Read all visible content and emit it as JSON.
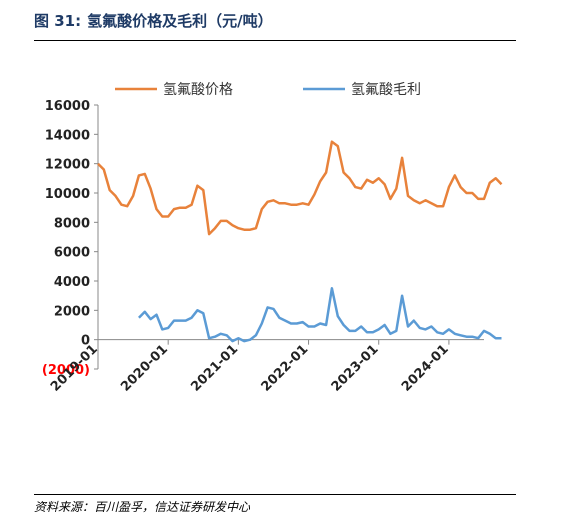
{
  "figure": {
    "label": "图 31:",
    "title": "氢氟酸价格及毛利（元/吨）",
    "source": "资料来源：百川盈孚，信达证券研发中心"
  },
  "colors": {
    "price": "#E8823B",
    "margin": "#5B9BD5",
    "title": "#1F3B66",
    "negative_tick": "#FF0000"
  },
  "chart_data": {
    "type": "line",
    "title": "",
    "xlabel": "",
    "ylabel": "",
    "ylim": [
      -2000,
      16000
    ],
    "yticks": [
      {
        "value": 16000,
        "label": "16000"
      },
      {
        "value": 14000,
        "label": "14000"
      },
      {
        "value": 12000,
        "label": "12000"
      },
      {
        "value": 10000,
        "label": "10000"
      },
      {
        "value": 8000,
        "label": "8000"
      },
      {
        "value": 6000,
        "label": "6000"
      },
      {
        "value": 4000,
        "label": "4000"
      },
      {
        "value": 2000,
        "label": "2000"
      },
      {
        "value": 0,
        "label": "0"
      },
      {
        "value": -2000,
        "label": "(2000)"
      }
    ],
    "xrange": [
      "2019-01",
      "2024-07"
    ],
    "xticks": [
      "2019-01",
      "2020-01",
      "2021-01",
      "2022-01",
      "2023-01",
      "2024-01"
    ],
    "grid": false,
    "legend_position": "top",
    "series": [
      {
        "name": "氢氟酸价格",
        "color": "#E8823B",
        "points": [
          [
            "2019-01",
            12000
          ],
          [
            "2019-02",
            11600
          ],
          [
            "2019-03",
            10200
          ],
          [
            "2019-04",
            9800
          ],
          [
            "2019-05",
            9200
          ],
          [
            "2019-06",
            9100
          ],
          [
            "2019-07",
            9800
          ],
          [
            "2019-08",
            11200
          ],
          [
            "2019-09",
            11300
          ],
          [
            "2019-10",
            10300
          ],
          [
            "2019-11",
            8900
          ],
          [
            "2019-12",
            8400
          ],
          [
            "2020-01",
            8400
          ],
          [
            "2020-02",
            8900
          ],
          [
            "2020-03",
            9000
          ],
          [
            "2020-04",
            9000
          ],
          [
            "2020-05",
            9200
          ],
          [
            "2020-06",
            10500
          ],
          [
            "2020-07",
            10200
          ],
          [
            "2020-08",
            7200
          ],
          [
            "2020-09",
            7600
          ],
          [
            "2020-10",
            8100
          ],
          [
            "2020-11",
            8100
          ],
          [
            "2020-12",
            7800
          ],
          [
            "2021-01",
            7600
          ],
          [
            "2021-02",
            7500
          ],
          [
            "2021-03",
            7500
          ],
          [
            "2021-04",
            7600
          ],
          [
            "2021-05",
            8900
          ],
          [
            "2021-06",
            9400
          ],
          [
            "2021-07",
            9500
          ],
          [
            "2021-08",
            9300
          ],
          [
            "2021-09",
            9300
          ],
          [
            "2021-10",
            9200
          ],
          [
            "2021-11",
            9200
          ],
          [
            "2021-12",
            9300
          ],
          [
            "2022-01",
            9200
          ],
          [
            "2022-02",
            9900
          ],
          [
            "2022-03",
            10800
          ],
          [
            "2022-04",
            11400
          ],
          [
            "2022-05",
            13500
          ],
          [
            "2022-06",
            13200
          ],
          [
            "2022-07",
            11400
          ],
          [
            "2022-08",
            11000
          ],
          [
            "2022-09",
            10400
          ],
          [
            "2022-10",
            10300
          ],
          [
            "2022-11",
            10900
          ],
          [
            "2022-12",
            10700
          ],
          [
            "2023-01",
            11000
          ],
          [
            "2023-02",
            10600
          ],
          [
            "2023-03",
            9600
          ],
          [
            "2023-04",
            10300
          ],
          [
            "2023-05",
            12400
          ],
          [
            "2023-06",
            9800
          ],
          [
            "2023-07",
            9500
          ],
          [
            "2023-08",
            9300
          ],
          [
            "2023-09",
            9500
          ],
          [
            "2023-10",
            9300
          ],
          [
            "2023-11",
            9100
          ],
          [
            "2023-12",
            9100
          ],
          [
            "2024-01",
            10400
          ],
          [
            "2024-02",
            11200
          ],
          [
            "2024-03",
            10400
          ],
          [
            "2024-04",
            10000
          ],
          [
            "2024-05",
            10000
          ],
          [
            "2024-06",
            9600
          ],
          [
            "2024-07",
            9600
          ],
          [
            "2024-08",
            10700
          ],
          [
            "2024-09",
            11000
          ],
          [
            "2024-10",
            10600
          ]
        ]
      },
      {
        "name": "氢氟酸毛利",
        "color": "#5B9BD5",
        "points": [
          [
            "2019-08",
            1500
          ],
          [
            "2019-09",
            1900
          ],
          [
            "2019-10",
            1400
          ],
          [
            "2019-11",
            1700
          ],
          [
            "2019-12",
            700
          ],
          [
            "2020-01",
            800
          ],
          [
            "2020-02",
            1300
          ],
          [
            "2020-03",
            1300
          ],
          [
            "2020-04",
            1300
          ],
          [
            "2020-05",
            1500
          ],
          [
            "2020-06",
            2000
          ],
          [
            "2020-07",
            1800
          ],
          [
            "2020-08",
            100
          ],
          [
            "2020-09",
            200
          ],
          [
            "2020-10",
            400
          ],
          [
            "2020-11",
            300
          ],
          [
            "2020-12",
            -100
          ],
          [
            "2021-01",
            100
          ],
          [
            "2021-02",
            -100
          ],
          [
            "2021-03",
            0
          ],
          [
            "2021-04",
            300
          ],
          [
            "2021-05",
            1100
          ],
          [
            "2021-06",
            2200
          ],
          [
            "2021-07",
            2100
          ],
          [
            "2021-08",
            1500
          ],
          [
            "2021-09",
            1300
          ],
          [
            "2021-10",
            1100
          ],
          [
            "2021-11",
            1100
          ],
          [
            "2021-12",
            1200
          ],
          [
            "2022-01",
            900
          ],
          [
            "2022-02",
            900
          ],
          [
            "2022-03",
            1100
          ],
          [
            "2022-04",
            1000
          ],
          [
            "2022-05",
            3500
          ],
          [
            "2022-06",
            1600
          ],
          [
            "2022-07",
            1000
          ],
          [
            "2022-08",
            600
          ],
          [
            "2022-09",
            600
          ],
          [
            "2022-10",
            900
          ],
          [
            "2022-11",
            500
          ],
          [
            "2022-12",
            500
          ],
          [
            "2023-01",
            700
          ],
          [
            "2023-02",
            1000
          ],
          [
            "2023-03",
            400
          ],
          [
            "2023-04",
            600
          ],
          [
            "2023-05",
            3000
          ],
          [
            "2023-06",
            900
          ],
          [
            "2023-07",
            1300
          ],
          [
            "2023-08",
            800
          ],
          [
            "2023-09",
            700
          ],
          [
            "2023-10",
            900
          ],
          [
            "2023-11",
            500
          ],
          [
            "2023-12",
            400
          ],
          [
            "2024-01",
            700
          ],
          [
            "2024-02",
            400
          ],
          [
            "2024-03",
            300
          ],
          [
            "2024-04",
            200
          ],
          [
            "2024-05",
            200
          ],
          [
            "2024-06",
            100
          ],
          [
            "2024-07",
            600
          ],
          [
            "2024-08",
            400
          ],
          [
            "2024-09",
            100
          ],
          [
            "2024-10",
            100
          ]
        ]
      }
    ]
  }
}
